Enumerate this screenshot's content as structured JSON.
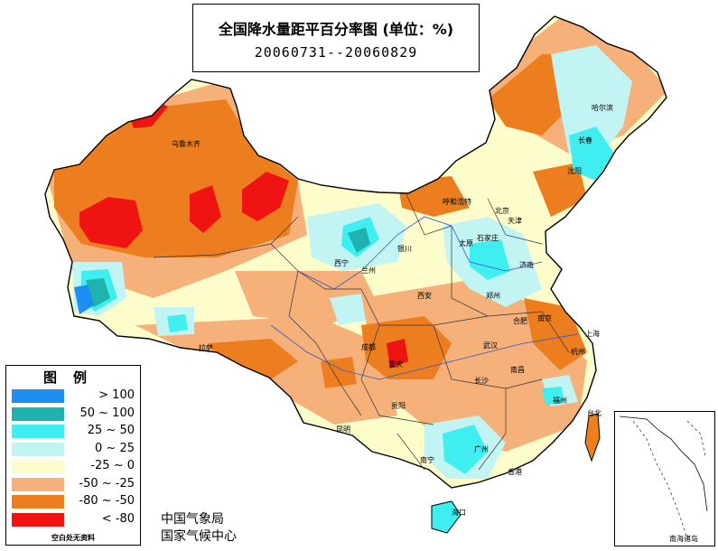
{
  "title": "全国降水量距平百分率图 (单位：%)",
  "date_range": "20060731--20060829",
  "legend": {
    "title": "图例",
    "items": [
      {
        "label": "> 100",
        "color": "#1e8ff0"
      },
      {
        "label": "50 ~ 100",
        "color": "#1fb2ae"
      },
      {
        "label": "25 ~ 50",
        "color": "#3fefef"
      },
      {
        "label": "0 ~ 25",
        "color": "#c2f4f4"
      },
      {
        "label": "-25 ~ 0",
        "color": "#fdfccb"
      },
      {
        "label": "-50 ~ -25",
        "color": "#f6b07a"
      },
      {
        "label": "-80 ~ -50",
        "color": "#ec7e1f"
      },
      {
        "label": "< -80",
        "color": "#ef1412"
      }
    ],
    "note": "空白处无资料"
  },
  "agency": [
    "中国气象局",
    "国家气候中心"
  ],
  "inset_label": "南海诸岛",
  "cities": [
    "哈尔滨",
    "长春",
    "沈阳",
    "乌鲁木齐",
    "呼和浩特",
    "北京",
    "天津",
    "银川",
    "太原",
    "石家庄",
    "济南",
    "西宁",
    "兰州",
    "郑州",
    "西安",
    "合肥",
    "南京",
    "上海",
    "拉萨",
    "成都",
    "武汉",
    "杭州",
    "重庆",
    "南昌",
    "长沙",
    "福州",
    "贵阳",
    "台北",
    "昆明",
    "南宁",
    "广州",
    "香港",
    "海口"
  ]
}
